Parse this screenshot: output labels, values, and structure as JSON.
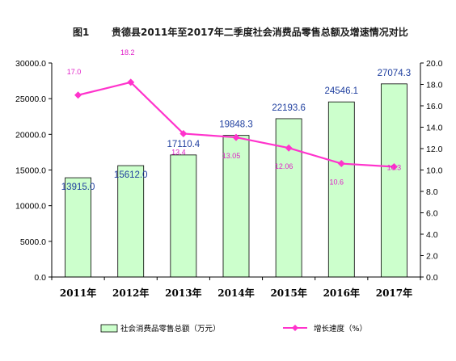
{
  "chart_data": {
    "type": "bar",
    "title_prefix": "图1",
    "title": "贵德县2011年至2017年二季度社会消费品零售总额及增速情况对比",
    "categories": [
      "2011年",
      "2012年",
      "2013年",
      "2014年",
      "2015年",
      "2016年",
      "2017年"
    ],
    "series": [
      {
        "name": "社会消费品零售总额（万元）",
        "type": "bar",
        "axis": "left",
        "values": [
          13915.0,
          15612.0,
          17110.4,
          19848.3,
          22193.6,
          24546.1,
          27074.3
        ],
        "labels": [
          "13915.0",
          "15612.0",
          "17110.4",
          "19848.3",
          "22193.6",
          "24546.1",
          "27074.3"
        ],
        "color": "#ccffcc"
      },
      {
        "name": "增长速度（%）",
        "type": "line",
        "axis": "right",
        "values": [
          17.0,
          18.2,
          13.4,
          13.05,
          12.06,
          10.6,
          10.3
        ],
        "labels": [
          "17.0",
          "18.2",
          "13.4",
          "13.05",
          "12.06",
          "10.6",
          "10.3"
        ],
        "color": "#ff33cc"
      }
    ],
    "y_left": {
      "min": 0,
      "max": 30000,
      "ticks": [
        "0.0",
        "5000.0",
        "10000.0",
        "15000.0",
        "20000.0",
        "25000.0",
        "30000.0"
      ]
    },
    "y_right": {
      "min": 0,
      "max": 20,
      "ticks": [
        "0.0",
        "2.0",
        "4.0",
        "6.0",
        "8.0",
        "10.0",
        "12.0",
        "14.0",
        "16.0",
        "18.0",
        "20.0"
      ]
    },
    "grid": false,
    "legend_position": "bottom",
    "colors": {
      "bar_fill": "#ccffcc",
      "bar_stroke": "#000000",
      "line": "#ff33cc",
      "bar_label": "#1f3f9f",
      "line_label": "#e020c8"
    }
  }
}
